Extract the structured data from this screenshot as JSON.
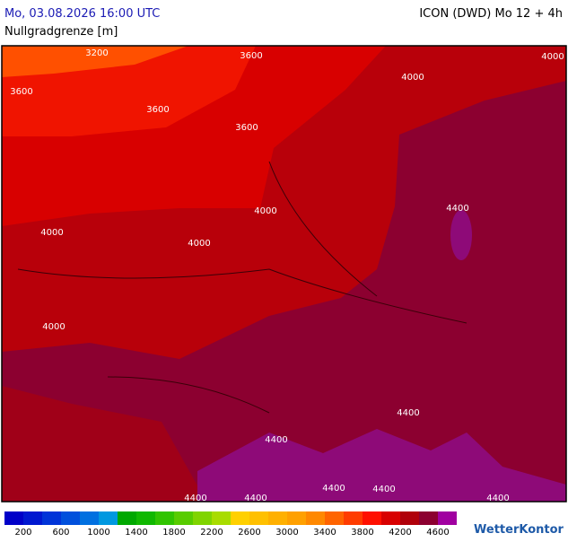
{
  "header": {
    "datetime": "Mo, 03.08.2026 16:00 UTC",
    "model": "ICON (DWD) Mo 12 + 4h",
    "parameter": "Nullgradgrenze [m]"
  },
  "map": {
    "contour_labels": [
      "3200",
      "3600",
      "4000",
      "3600",
      "4000",
      "3600",
      "3600",
      "4000",
      "4400",
      "4000",
      "4000",
      "4000",
      "4400",
      "4400",
      "4400",
      "4400",
      "4400",
      "4400",
      "4400"
    ]
  },
  "legend": {
    "colors": [
      "#0000c8",
      "#0018d0",
      "#0034d8",
      "#0050dc",
      "#0070e0",
      "#0098e0",
      "#00a800",
      "#10b800",
      "#30c400",
      "#58cc00",
      "#80d400",
      "#a8dc00",
      "#ffd000",
      "#ffc000",
      "#ffb000",
      "#ffa000",
      "#ff8800",
      "#ff6400",
      "#ff3c00",
      "#ff1000",
      "#d80000",
      "#b0000a",
      "#8c0030",
      "#a000a0"
    ],
    "ticks": [
      200,
      600,
      1000,
      1400,
      1800,
      2200,
      2600,
      3000,
      3400,
      3800,
      4200,
      4600
    ]
  },
  "logo": "WetterKontor"
}
